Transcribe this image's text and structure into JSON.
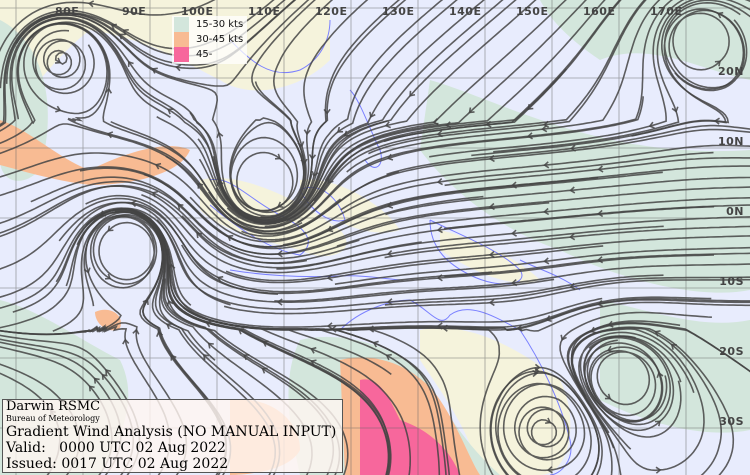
{
  "map": {
    "longitude_labels": [
      "80E",
      "90E",
      "100E",
      "110E",
      "120E",
      "130E",
      "140E",
      "150E",
      "160E",
      "170E"
    ],
    "latitude_labels": [
      "20N",
      "10N",
      "0N",
      "10S",
      "20S",
      "30S"
    ]
  },
  "legend": {
    "items": [
      {
        "label": "15-30 kts",
        "color": "#d3e6dc"
      },
      {
        "label": "30-45 kts",
        "color": "#f8bb93"
      },
      {
        "label": "45-",
        "color": "#f7679c"
      }
    ]
  },
  "info": {
    "office": "Darwin RSMC",
    "agency": "Bureau of Meteorology",
    "title": "Gradient Wind Analysis (NO MANUAL INPUT)",
    "valid": "Valid:   0000 UTC 02 Aug 2022",
    "issued": "Issued: 0017 UTC 02 Aug 2022"
  },
  "colors": {
    "background": "#e8ecfd",
    "land": "#f5f3dc",
    "coastline": "#7a80ff",
    "streamline": "#444444"
  }
}
